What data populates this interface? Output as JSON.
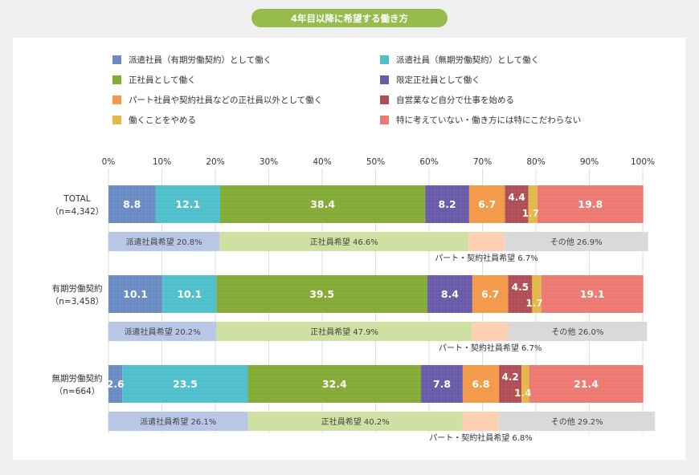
{
  "title": "4年目以降に希望する働き方",
  "colors": {
    "background": "#f0f0f0",
    "card": "#ffffff",
    "title_pill": "#95bc4c",
    "gridline": "#dddddd",
    "axis_text": "#333333"
  },
  "legend": [
    {
      "label": "派遣社員（有期労働契約）として働く",
      "color": "#6a8bc4"
    },
    {
      "label": "派遣社員（無期労働契約）として働く",
      "color": "#4fbfcc"
    },
    {
      "label": "正社員として働く",
      "color": "#84ab36"
    },
    {
      "label": "限定正社員として働く",
      "color": "#6a5aaa"
    },
    {
      "label": "パート社員や契約社員などの正社員以外として働く",
      "color": "#f29a49"
    },
    {
      "label": "自営業など自分で仕事を始める",
      "color": "#b04e55"
    },
    {
      "label": "働くことをやめる",
      "color": "#e3b84b"
    },
    {
      "label": "特に考えていない・働き方には特にこだわらない",
      "color": "#ec7a72"
    }
  ],
  "chart_data": {
    "type": "bar",
    "orientation": "horizontal",
    "stacked": true,
    "x_ticks": [
      "0%",
      "10%",
      "20%",
      "30%",
      "40%",
      "50%",
      "60%",
      "70%",
      "80%",
      "90%",
      "100%"
    ],
    "xlim": [
      0,
      100
    ],
    "grid": true,
    "legend_position": "top",
    "groups": [
      {
        "label": "TOTAL",
        "n": "（n=4,342）",
        "values": [
          8.8,
          12.1,
          38.4,
          8.2,
          6.7,
          4.4,
          1.7,
          19.8
        ],
        "labels": [
          "8.8",
          "12.1",
          "38.4",
          "8.2",
          "6.7",
          "4.4",
          "1.7",
          "19.8"
        ],
        "summary": [
          {
            "label": "派遣社員希望 20.8%",
            "value": 20.8,
            "color": "#b9c7e6"
          },
          {
            "label": "正社員希望 46.6%",
            "value": 46.6,
            "color": "#cfe0a3"
          },
          {
            "label": "パート・契約社員希望 6.7%",
            "value": 6.7,
            "color": "#fcd0b0"
          },
          {
            "label": "その他 26.9%",
            "value": 26.9,
            "color": "#d9d9d9"
          }
        ]
      },
      {
        "label": "有期労働契約",
        "n": "（n=3,458）",
        "values": [
          10.1,
          10.1,
          39.5,
          8.4,
          6.7,
          4.5,
          1.7,
          19.1
        ],
        "labels": [
          "10.1",
          "10.1",
          "39.5",
          "8.4",
          "6.7",
          "4.5",
          "1.7",
          "19.1"
        ],
        "summary": [
          {
            "label": "派遣社員希望 20.2%",
            "value": 20.2,
            "color": "#b9c7e6"
          },
          {
            "label": "正社員希望 47.9%",
            "value": 47.9,
            "color": "#cfe0a3"
          },
          {
            "label": "パート・契約社員希望 6.7%",
            "value": 6.7,
            "color": "#fcd0b0"
          },
          {
            "label": "その他 26.0%",
            "value": 26.0,
            "color": "#d9d9d9"
          }
        ]
      },
      {
        "label": "無期労働契約",
        "n": "（n=664）",
        "values": [
          2.6,
          23.5,
          32.4,
          7.8,
          6.8,
          4.2,
          1.4,
          21.4
        ],
        "labels": [
          "2.6",
          "23.5",
          "32.4",
          "7.8",
          "6.8",
          "4.2",
          "1.4",
          "21.4"
        ],
        "summary": [
          {
            "label": "派遣社員希望 26.1%",
            "value": 26.1,
            "color": "#b9c7e6"
          },
          {
            "label": "正社員希望 40.2%",
            "value": 40.2,
            "color": "#cfe0a3"
          },
          {
            "label": "パート・契約社員希望 6.8%",
            "value": 6.8,
            "color": "#fcd0b0"
          },
          {
            "label": "その他 29.2%",
            "value": 29.2,
            "color": "#d9d9d9"
          }
        ]
      }
    ]
  }
}
